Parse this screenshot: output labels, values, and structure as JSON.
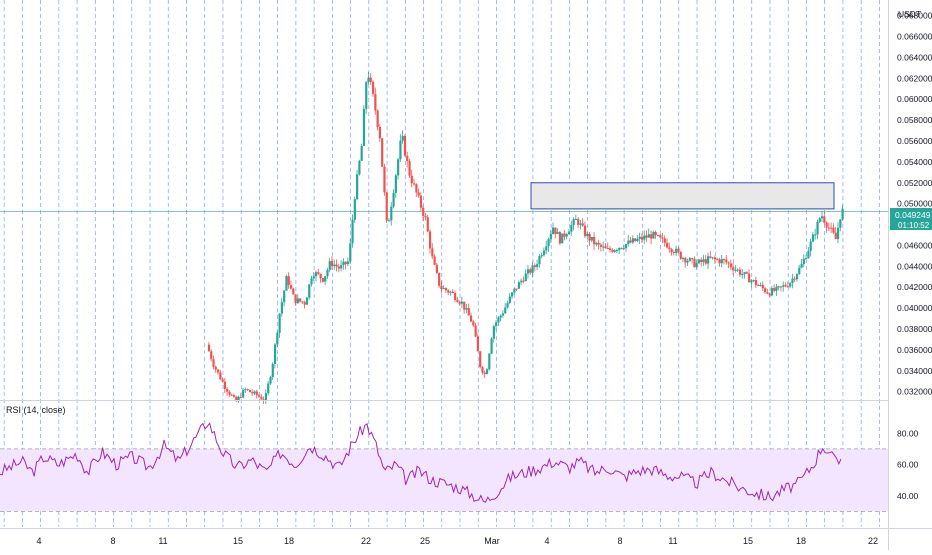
{
  "currency": "USDT",
  "colors": {
    "up": "#26a69a",
    "down": "#ef5350",
    "grid": "#5b8ff9",
    "rsi_line": "#9c27b0",
    "rsi_band": "#f3e5ff",
    "price_badge": "#26a69a",
    "zone_border": "#2f4bb8",
    "zone_fill": "#e8e8e8",
    "current_line": "#4db6ac"
  },
  "price_label": {
    "price": "0.049249",
    "countdown": "01:10:52"
  },
  "rsi": {
    "label": "RSI (14, close)",
    "ticks": [
      "80.00",
      "60.00",
      "40.00"
    ],
    "upper": 70,
    "lower": 30
  },
  "resistance_zone": {
    "low": 0.0495,
    "high": 0.052
  },
  "chart_data": {
    "type": "candlestick",
    "y_axis": {
      "min": 0.0312,
      "max": 0.0695,
      "ticks": [
        "0.070000",
        "0.068000",
        "0.066000",
        "0.064000",
        "0.062000",
        "0.060000",
        "0.058000",
        "0.056000",
        "0.054000",
        "0.052000",
        "0.050000",
        "0.046000",
        "0.044000",
        "0.042000",
        "0.040000",
        "0.038000",
        "0.036000",
        "0.034000",
        "0.032000"
      ]
    },
    "x_axis": {
      "domain_days": [
        1.8,
        25.0
      ],
      "labels": [
        {
          "text": "4",
          "day": 4
        },
        {
          "text": "8",
          "day": 8
        },
        {
          "text": "11",
          "day": 11
        },
        {
          "text": "15",
          "day": 15
        },
        {
          "text": "18",
          "day": 18
        },
        {
          "text": "22",
          "day": 22
        },
        {
          "text": "25",
          "day": 25
        },
        {
          "text": "Mar",
          "day": 29
        },
        {
          "text": "4",
          "day": 32
        },
        {
          "text": "8",
          "day": 36
        },
        {
          "text": "11",
          "day": 39
        },
        {
          "text": "15",
          "day": 43
        },
        {
          "text": "18",
          "day": 46
        },
        {
          "text": "22",
          "day": 50
        }
      ]
    },
    "price_path": [
      [
        13.2,
        0.0365
      ],
      [
        13.6,
        0.0345
      ],
      [
        14.2,
        0.0325
      ],
      [
        14.8,
        0.031
      ],
      [
        15.3,
        0.0322
      ],
      [
        15.8,
        0.0318
      ],
      [
        16.4,
        0.0312
      ],
      [
        16.8,
        0.0345
      ],
      [
        17.2,
        0.0395
      ],
      [
        17.6,
        0.043
      ],
      [
        18.0,
        0.0408
      ],
      [
        18.6,
        0.0405
      ],
      [
        19.0,
        0.0435
      ],
      [
        19.6,
        0.0428
      ],
      [
        20.0,
        0.0444
      ],
      [
        20.5,
        0.0438
      ],
      [
        21.0,
        0.0445
      ],
      [
        21.3,
        0.0505
      ],
      [
        21.7,
        0.0555
      ],
      [
        22.0,
        0.063
      ],
      [
        22.4,
        0.0595
      ],
      [
        22.7,
        0.0565
      ],
      [
        23.1,
        0.0475
      ],
      [
        23.5,
        0.052
      ],
      [
        23.9,
        0.0565
      ],
      [
        24.3,
        0.053
      ],
      [
        24.7,
        0.051
      ],
      [
        25.2,
        0.0485
      ],
      [
        25.6,
        0.0445
      ],
      [
        26.0,
        0.042
      ],
      [
        26.6,
        0.0415
      ],
      [
        27.2,
        0.0405
      ],
      [
        27.8,
        0.0385
      ],
      [
        28.2,
        0.0345
      ],
      [
        28.5,
        0.0335
      ],
      [
        28.9,
        0.0382
      ],
      [
        29.4,
        0.0395
      ],
      [
        30.0,
        0.0415
      ],
      [
        30.6,
        0.043
      ],
      [
        31.2,
        0.044
      ],
      [
        31.8,
        0.0462
      ],
      [
        32.2,
        0.0478
      ],
      [
        32.6,
        0.0465
      ],
      [
        33.0,
        0.0475
      ],
      [
        33.5,
        0.0485
      ],
      [
        34.0,
        0.047
      ],
      [
        34.6,
        0.046
      ],
      [
        35.2,
        0.0455
      ],
      [
        36.0,
        0.046
      ],
      [
        36.8,
        0.0465
      ],
      [
        37.6,
        0.047
      ],
      [
        38.4,
        0.0462
      ],
      [
        39.2,
        0.045
      ],
      [
        40.0,
        0.0442
      ],
      [
        40.8,
        0.0447
      ],
      [
        41.6,
        0.0445
      ],
      [
        42.4,
        0.0435
      ],
      [
        43.2,
        0.0425
      ],
      [
        44.0,
        0.0415
      ],
      [
        44.6,
        0.0418
      ],
      [
        45.2,
        0.0425
      ],
      [
        45.8,
        0.044
      ],
      [
        46.4,
        0.0465
      ],
      [
        46.9,
        0.049
      ],
      [
        47.3,
        0.0478
      ],
      [
        47.7,
        0.0466
      ],
      [
        48.0,
        0.0493
      ]
    ],
    "rsi_path": [
      [
        1.8,
        55
      ],
      [
        3.0,
        62
      ],
      [
        3.6,
        55
      ],
      [
        4.2,
        65
      ],
      [
        5.0,
        60
      ],
      [
        6.0,
        67
      ],
      [
        6.6,
        55
      ],
      [
        7.4,
        68
      ],
      [
        8.2,
        60
      ],
      [
        9.0,
        65
      ],
      [
        10.0,
        58
      ],
      [
        10.8,
        72
      ],
      [
        11.6,
        62
      ],
      [
        12.4,
        75
      ],
      [
        13.2,
        88
      ],
      [
        14.0,
        68
      ],
      [
        14.8,
        58
      ],
      [
        15.6,
        63
      ],
      [
        16.4,
        55
      ],
      [
        17.2,
        68
      ],
      [
        18.0,
        60
      ],
      [
        18.8,
        72
      ],
      [
        19.6,
        66
      ],
      [
        20.4,
        58
      ],
      [
        21.2,
        75
      ],
      [
        21.9,
        86
      ],
      [
        22.4,
        73
      ],
      [
        22.9,
        55
      ],
      [
        23.5,
        60
      ],
      [
        24.1,
        50
      ],
      [
        24.8,
        56
      ],
      [
        25.5,
        50
      ],
      [
        26.2,
        48
      ],
      [
        27.0,
        45
      ],
      [
        27.8,
        40
      ],
      [
        28.4,
        36
      ],
      [
        29.0,
        42
      ],
      [
        29.8,
        52
      ],
      [
        30.6,
        55
      ],
      [
        31.4,
        58
      ],
      [
        32.2,
        62
      ],
      [
        33.0,
        58
      ],
      [
        33.6,
        62
      ],
      [
        34.4,
        55
      ],
      [
        35.2,
        58
      ],
      [
        36.0,
        52
      ],
      [
        36.8,
        56
      ],
      [
        37.6,
        57
      ],
      [
        38.4,
        53
      ],
      [
        39.2,
        52
      ],
      [
        40.0,
        48
      ],
      [
        40.8,
        55
      ],
      [
        41.6,
        50
      ],
      [
        42.4,
        45
      ],
      [
        43.2,
        42
      ],
      [
        44.0,
        39
      ],
      [
        44.8,
        44
      ],
      [
        45.6,
        48
      ],
      [
        46.4,
        60
      ],
      [
        46.9,
        72
      ],
      [
        47.3,
        68
      ],
      [
        47.7,
        60
      ],
      [
        48.0,
        65
      ]
    ]
  }
}
